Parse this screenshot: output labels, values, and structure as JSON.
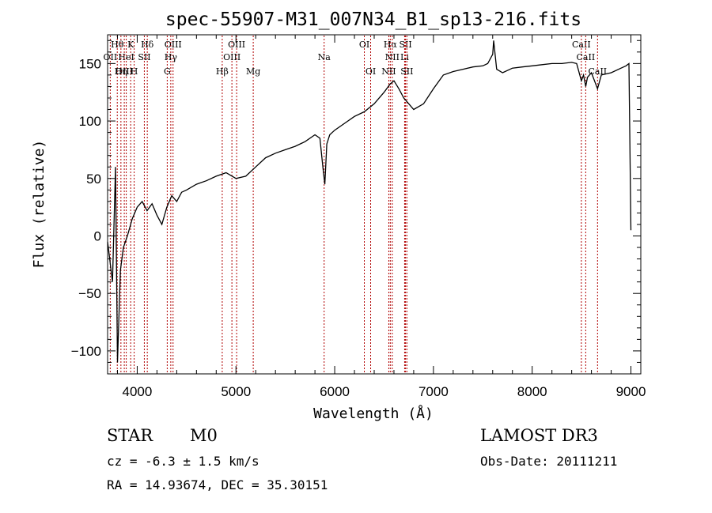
{
  "chart_data": {
    "type": "line",
    "title": "spec-55907-M31_007N34_B1_sp13-216.fits",
    "xlabel": "Wavelength (Å)",
    "ylabel": "Flux (relative)",
    "xlim": [
      3700,
      9100
    ],
    "ylim": [
      -120,
      175
    ],
    "xticks": [
      4000,
      5000,
      6000,
      7000,
      8000,
      9000
    ],
    "yticks": [
      -100,
      -50,
      0,
      50,
      100,
      150
    ],
    "series": [
      {
        "name": "flux",
        "x": [
          3700,
          3750,
          3780,
          3800,
          3830,
          3860,
          3900,
          3950,
          4000,
          4050,
          4100,
          4150,
          4200,
          4250,
          4300,
          4350,
          4400,
          4450,
          4500,
          4600,
          4700,
          4800,
          4900,
          5000,
          5100,
          5200,
          5300,
          5400,
          5500,
          5600,
          5700,
          5800,
          5850,
          5880,
          5900,
          5920,
          5950,
          6000,
          6100,
          6200,
          6300,
          6400,
          6500,
          6560,
          6600,
          6650,
          6700,
          6750,
          6800,
          6900,
          7000,
          7100,
          7200,
          7300,
          7400,
          7500,
          7550,
          7600,
          7610,
          7640,
          7700,
          7800,
          7900,
          8000,
          8100,
          8200,
          8300,
          8400,
          8450,
          8498,
          8520,
          8542,
          8560,
          8600,
          8662,
          8700,
          8800,
          8900,
          8950,
          8980,
          9000
        ],
        "y": [
          -5,
          -40,
          60,
          -110,
          -30,
          -10,
          0,
          15,
          25,
          30,
          22,
          28,
          18,
          10,
          25,
          35,
          30,
          38,
          40,
          45,
          48,
          52,
          55,
          50,
          52,
          60,
          68,
          72,
          75,
          78,
          82,
          88,
          85,
          60,
          45,
          80,
          88,
          92,
          98,
          104,
          108,
          115,
          125,
          132,
          135,
          128,
          120,
          115,
          110,
          115,
          128,
          140,
          143,
          145,
          147,
          148,
          150,
          158,
          170,
          145,
          142,
          146,
          147,
          148,
          149,
          150,
          150,
          151,
          150,
          135,
          140,
          130,
          138,
          142,
          128,
          140,
          142,
          146,
          148,
          150,
          5
        ]
      }
    ],
    "lines": [
      {
        "label": "Hθ",
        "wl": 3798,
        "row": 0
      },
      {
        "label": "K",
        "wl": 3934,
        "row": 0
      },
      {
        "label": "Hδ",
        "wl": 4102,
        "row": 0
      },
      {
        "label": "OIII",
        "wl": 4363,
        "row": 0
      },
      {
        "label": "OIII",
        "wl": 5007,
        "row": 0
      },
      {
        "label": "OI",
        "wl": 6300,
        "row": 0
      },
      {
        "label": "Hα",
        "wl": 6563,
        "row": 0
      },
      {
        "label": "SII",
        "wl": 6717,
        "row": 0
      },
      {
        "label": "CaII",
        "wl": 8498,
        "row": 0
      },
      {
        "label": "OII",
        "wl": 3727,
        "row": 1
      },
      {
        "label": "HeI",
        "wl": 3889,
        "row": 1
      },
      {
        "label": "SII",
        "wl": 4072,
        "row": 1
      },
      {
        "label": "Hγ",
        "wl": 4340,
        "row": 1
      },
      {
        "label": "OIII",
        "wl": 4959,
        "row": 1
      },
      {
        "label": "Na",
        "wl": 5893,
        "row": 1
      },
      {
        "label": "NII",
        "wl": 6583,
        "row": 1
      },
      {
        "label": "Li",
        "wl": 6708,
        "row": 1
      },
      {
        "label": "CaII",
        "wl": 8542,
        "row": 1
      },
      {
        "label": "OIII",
        "wl": 3869,
        "row": 2
      },
      {
        "label": "Hη",
        "wl": 3835,
        "row": 2
      },
      {
        "label": "H",
        "wl": 3969,
        "row": 2
      },
      {
        "label": "G",
        "wl": 4304,
        "row": 2
      },
      {
        "label": "Hβ",
        "wl": 4861,
        "row": 2
      },
      {
        "label": "Mg",
        "wl": 5175,
        "row": 2
      },
      {
        "label": "OI",
        "wl": 6364,
        "row": 2
      },
      {
        "label": "NII",
        "wl": 6548,
        "row": 2
      },
      {
        "label": "SII",
        "wl": 6731,
        "row": 2
      },
      {
        "label": "CaII",
        "wl": 8662,
        "row": 2
      }
    ]
  },
  "info": {
    "class_label": "STAR",
    "subclass_label": "M0",
    "survey_label": "LAMOST DR3",
    "cz_text": "cz = -6.3 ± 1.5 km/s",
    "obs_date_text": "Obs-Date: 20111211",
    "coords_text": "RA =  14.93674, DEC =  35.30151"
  },
  "colors": {
    "line_marker": "#b00000",
    "spectrum": "#000000"
  }
}
